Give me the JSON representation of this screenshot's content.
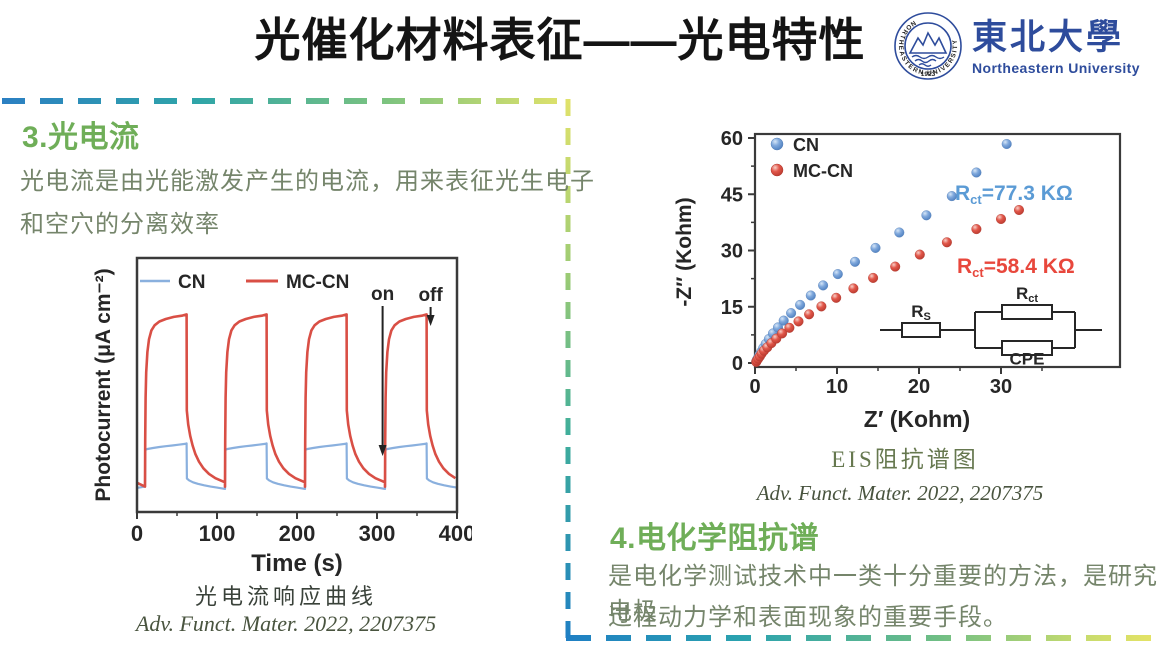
{
  "slide": {
    "title": "光催化材料表征——光电特性"
  },
  "logo": {
    "cn": "東北大學",
    "en": "Northeastern University",
    "ring_text": "NORTHEASTERN  UNIVERSITY",
    "year": "1923",
    "color": "#2E4C9C"
  },
  "section3": {
    "heading": "3.光电流",
    "body_line1": "光电流是由光能激发产生的电流，用来表征光生电子",
    "body_line2": "和空穴的分离效率",
    "caption": "光电流响应曲线",
    "citation": "Adv. Funct. Mater. 2022, 2207375"
  },
  "section4": {
    "heading": "4.电化学阻抗谱",
    "body_line1": "是电化学测试技术中一类十分重要的方法，是研究电极",
    "body_line2": "过程动力学和表面现象的重要手段。",
    "caption": "EIS阻抗谱图",
    "citation": "Adv. Funct. Mater. 2022, 2207375"
  },
  "colors": {
    "heading_green": "#6FAE58",
    "body_text": "#75856B",
    "cn_blue": "#8AB0DE",
    "mccn_red": "#D94F45",
    "annotation_blue": "#5B9BD5",
    "annotation_red": "#E8473C",
    "logo_blue": "#2E4C9C",
    "dash_blue": "#1F7FC4",
    "dash_teal": "#2FA5A8",
    "dash_green": "#7CC37F",
    "dash_yellow": "#E5E468"
  },
  "chart_data": [
    {
      "type": "line",
      "title": "光电流响应曲线",
      "xlabel": "Time (s)",
      "ylabel": "Photocurrent (μA cm⁻²)",
      "xlim": [
        0,
        400
      ],
      "xticks": [
        0,
        100,
        200,
        300,
        400
      ],
      "minor_xticks": [
        50,
        150,
        250,
        350
      ],
      "yticks": [],
      "grid": false,
      "legend_position": "top-inside",
      "light_on_times": [
        10,
        110,
        210,
        310
      ],
      "light_off_times": [
        62,
        162,
        262,
        362
      ],
      "annotations": [
        {
          "label": "on",
          "t": 307
        },
        {
          "label": "off",
          "t": 367
        }
      ],
      "series": [
        {
          "name": "CN",
          "color": "#8AB0DE",
          "baseline": 0.095,
          "cycle_shape": [
            [
              0,
              0.1
            ],
            [
              0.4,
              0.245
            ],
            [
              3,
              0.248
            ],
            [
              10,
              0.252
            ],
            [
              18,
              0.256
            ],
            [
              26,
              0.259
            ],
            [
              34,
              0.262
            ],
            [
              42,
              0.265
            ],
            [
              50,
              0.268
            ],
            [
              52,
              0.27
            ],
            [
              52.4,
              0.132
            ],
            [
              55,
              0.125
            ],
            [
              60,
              0.117
            ],
            [
              66,
              0.111
            ],
            [
              74,
              0.105
            ],
            [
              82,
              0.1
            ],
            [
              90,
              0.096
            ],
            [
              100,
              0.091
            ]
          ]
        },
        {
          "name": "MC-CN",
          "color": "#D94F45",
          "baseline": 0.115,
          "cycle_shape": [
            [
              0,
              0.1
            ],
            [
              0.3,
              0.28
            ],
            [
              0.8,
              0.45
            ],
            [
              1.5,
              0.55
            ],
            [
              3,
              0.63
            ],
            [
              5,
              0.68
            ],
            [
              8,
              0.715
            ],
            [
              12,
              0.735
            ],
            [
              18,
              0.75
            ],
            [
              26,
              0.76
            ],
            [
              36,
              0.768
            ],
            [
              46,
              0.773
            ],
            [
              52,
              0.778
            ],
            [
              52.3,
              0.4
            ],
            [
              54,
              0.345
            ],
            [
              56.5,
              0.3
            ],
            [
              59.5,
              0.262
            ],
            [
              63,
              0.228
            ],
            [
              67.5,
              0.198
            ],
            [
              73,
              0.172
            ],
            [
              80,
              0.15
            ],
            [
              88,
              0.133
            ],
            [
              100,
              0.117
            ]
          ]
        }
      ]
    },
    {
      "type": "scatter",
      "title": "EIS阻抗谱图",
      "xlabel": "Z′ (Kohm)",
      "ylabel": "-Z′′ (Kohm)",
      "xlim": [
        0,
        44
      ],
      "xticks": [
        0,
        10,
        20,
        30
      ],
      "minor_xticks": [
        5,
        15,
        25,
        35
      ],
      "ylim": [
        0,
        61
      ],
      "yticks": [
        0,
        15,
        30,
        45,
        60
      ],
      "minor_yticks": [
        7.5,
        22.5,
        37.5,
        52.5
      ],
      "grid": false,
      "legend_position": "top-left-inside",
      "annotations": [
        {
          "prefix": "R",
          "sub": "ct",
          "rest": "=77.3 KΩ",
          "color": "#5B9BD5",
          "series": "CN"
        },
        {
          "prefix": "R",
          "sub": "ct",
          "rest": "=58.4 KΩ",
          "color": "#E8473C",
          "series": "MC-CN"
        }
      ],
      "equivalent_circuit": {
        "rs": {
          "prefix": "R",
          "sub": "S"
        },
        "rct": {
          "prefix": "R",
          "sub": "ct"
        },
        "cpe": "CPE"
      },
      "series": [
        {
          "name": "CN",
          "color": "#6FA0D8",
          "points": [
            [
              0.15,
              0.4
            ],
            [
              0.25,
              0.9
            ],
            [
              0.4,
              1.5
            ],
            [
              0.55,
              2.2
            ],
            [
              0.75,
              3.0
            ],
            [
              1.0,
              4.0
            ],
            [
              1.3,
              5.1
            ],
            [
              1.7,
              6.4
            ],
            [
              2.2,
              7.9
            ],
            [
              2.8,
              9.5
            ],
            [
              3.5,
              11.3
            ],
            [
              4.4,
              13.3
            ],
            [
              5.5,
              15.5
            ],
            [
              6.8,
              18.0
            ],
            [
              8.3,
              20.7
            ],
            [
              10.1,
              23.7
            ],
            [
              12.2,
              27.0
            ],
            [
              14.7,
              30.7
            ],
            [
              17.6,
              34.8
            ],
            [
              20.9,
              39.4
            ],
            [
              24.0,
              44.5
            ],
            [
              27.0,
              50.8
            ],
            [
              30.7,
              58.4
            ]
          ]
        },
        {
          "name": "MC-CN",
          "color": "#E2574A",
          "points": [
            [
              0.15,
              0.3
            ],
            [
              0.25,
              0.7
            ],
            [
              0.4,
              1.2
            ],
            [
              0.6,
              1.8
            ],
            [
              0.8,
              2.5
            ],
            [
              1.1,
              3.3
            ],
            [
              1.5,
              4.2
            ],
            [
              2.0,
              5.3
            ],
            [
              2.6,
              6.5
            ],
            [
              3.3,
              7.9
            ],
            [
              4.2,
              9.4
            ],
            [
              5.3,
              11.1
            ],
            [
              6.6,
              13.0
            ],
            [
              8.1,
              15.1
            ],
            [
              9.9,
              17.4
            ],
            [
              12.0,
              19.9
            ],
            [
              14.4,
              22.7
            ],
            [
              17.1,
              25.7
            ],
            [
              20.1,
              28.9
            ],
            [
              23.4,
              32.2
            ],
            [
              27.0,
              35.7
            ],
            [
              30.0,
              38.4
            ],
            [
              32.2,
              40.8
            ]
          ]
        }
      ]
    }
  ]
}
